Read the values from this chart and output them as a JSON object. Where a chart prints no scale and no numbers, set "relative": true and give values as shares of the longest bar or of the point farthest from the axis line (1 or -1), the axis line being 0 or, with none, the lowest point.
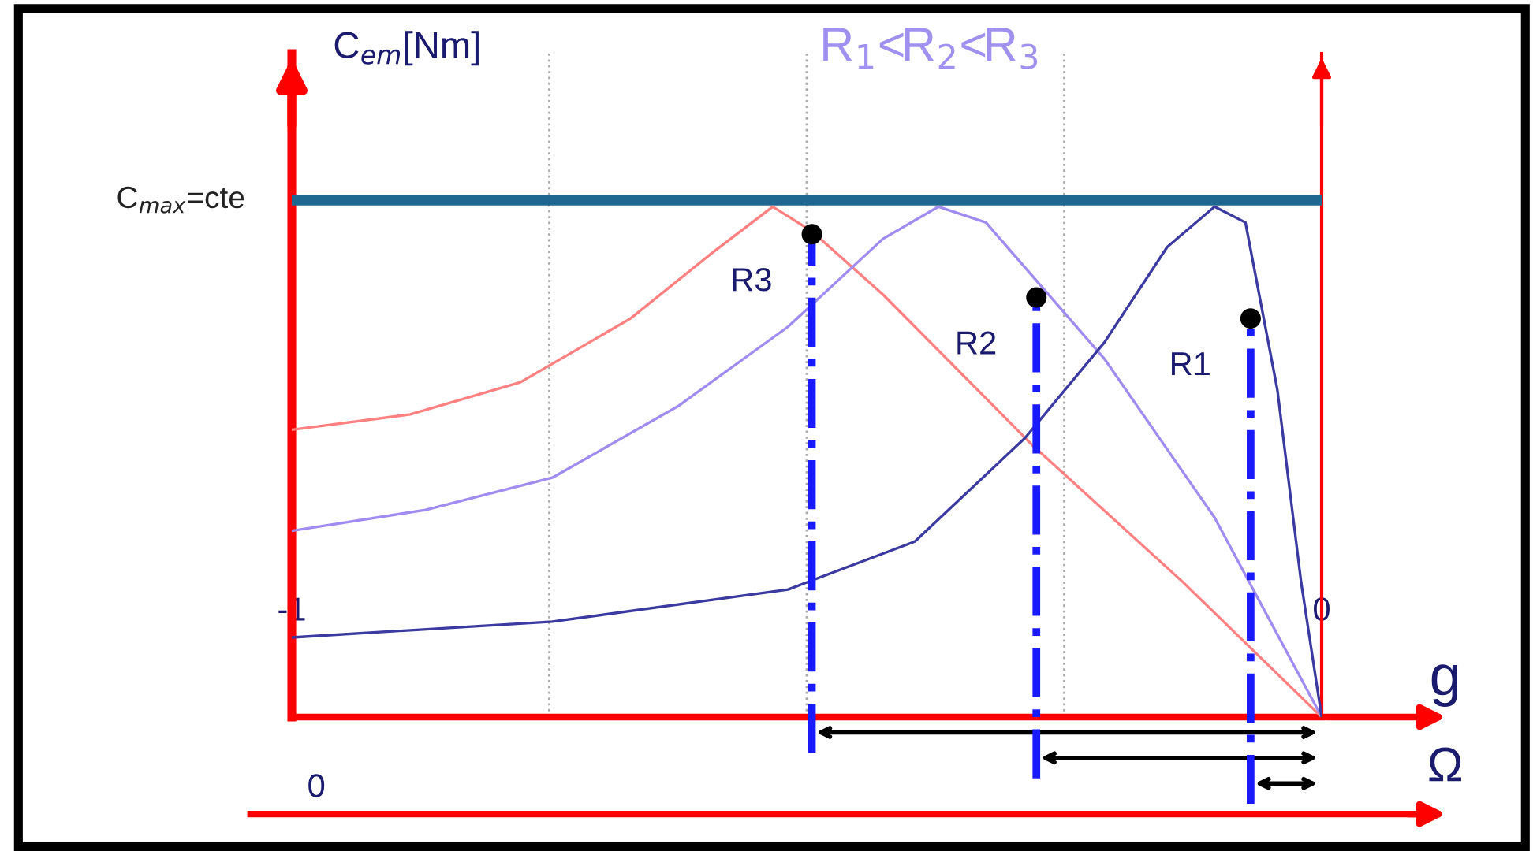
{
  "chart_data": {
    "type": "line",
    "title": "R$_{1}$<R$_{2}$<R$_{3}$",
    "ylabel": "C$_{em}$[Nm]",
    "xlabel": "g",
    "relative": true,
    "xlim": [
      -1,
      0
    ],
    "xticks": [
      -1,
      {
        "value": -0.75,
        "label": null
      },
      {
        "value": -0.5,
        "label": null
      },
      {
        "value": -0.25,
        "label": null
      },
      0
    ],
    "grid": "x",
    "series": [
      {
        "color": "#ff8080",
        "x": [
          -1,
          -0.885,
          -0.778,
          -0.671,
          -0.594,
          -0.533,
          -0.495,
          -0.426,
          -0.28,
          -0.135,
          0
        ],
        "values": [
          0.563,
          0.593,
          0.656,
          0.781,
          0.906,
          1,
          0.952,
          0.828,
          0.531,
          0.265,
          0
        ]
      },
      {
        "color": "#a08cf0",
        "x": [
          -1,
          -0.87,
          -0.747,
          -0.625,
          -0.518,
          -0.426,
          -0.372,
          -0.326,
          -0.211,
          -0.104,
          0
        ],
        "values": [
          0.365,
          0.406,
          0.469,
          0.609,
          0.765,
          0.937,
          1,
          0.969,
          0.702,
          0.391,
          0
        ]
      },
      {
        "color": "#3a3aa0",
        "x": [
          -1,
          -0.747,
          -0.518,
          -0.395,
          -0.288,
          -0.211,
          -0.15,
          -0.104,
          -0.074,
          -0.043,
          -0.02,
          0
        ],
        "values": [
          0.156,
          0.187,
          0.25,
          0.344,
          0.547,
          0.734,
          0.921,
          1,
          0.969,
          0.641,
          0.265,
          0
        ]
      },
      {
        "type": "scatter",
        "color": "#000000",
        "x": [
          -0.495,
          -0.277,
          -0.069
        ],
        "values": [
          0.946,
          0.822,
          0.781
        ]
      }
    ],
    "ref_lines": [
      {
        "axis": "y",
        "value": 1.013,
        "label": "C$_{max}$=cte",
        "color": "#1f6690"
      },
      {
        "axis": "x",
        "value": -0.495,
        "color": "#1a1aff",
        "line_style": "dashed"
      },
      {
        "axis": "x",
        "value": -0.277,
        "color": "#1a1aff",
        "line_style": "dashed"
      },
      {
        "axis": "x",
        "value": -0.069,
        "color": "#1a1aff",
        "line_style": "dashed"
      }
    ],
    "annotations": [
      {
        "text": "R3",
        "x": -0.495,
        "y": 0.946
      },
      {
        "text": "R2",
        "x": -0.277,
        "y": 0.822
      },
      {
        "text": "R1",
        "x": -0.069,
        "y": 0.781
      },
      "0",
      "Ω"
    ]
  }
}
